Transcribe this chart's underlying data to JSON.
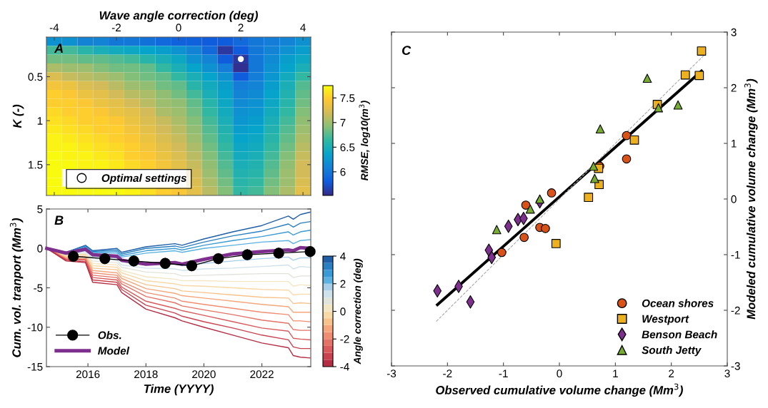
{
  "chart_data": [
    {
      "type": "heatmap",
      "xlabel": "Wave angle correction (deg)",
      "ylabel": "K (-)",
      "clabel": "RMSE, log10(m$^{3}$)",
      "annotations": [
        "A"
      ],
      "x": [
        -4,
        -3.5,
        -3,
        -2.5,
        -2,
        -1.5,
        -1,
        -0.5,
        0,
        0.5,
        1,
        1.5,
        2,
        2.5,
        3,
        3.5,
        4
      ],
      "y": [
        0.1,
        0.2,
        0.3,
        0.4,
        0.5,
        0.6,
        0.7,
        0.8,
        0.9,
        1.0,
        1.1,
        1.2,
        1.3,
        1.4,
        1.5,
        1.6,
        1.7,
        1.8
      ],
      "cells": [
        [
          6.2,
          6.2,
          6.1,
          6.1,
          6.0,
          6.0,
          5.95,
          5.9,
          5.85,
          5.85,
          5.8,
          5.8,
          5.9,
          6.0,
          6.05,
          6.1,
          6.2
        ],
        [
          6.7,
          6.7,
          6.6,
          6.5,
          6.45,
          6.4,
          6.35,
          6.3,
          6.2,
          6.1,
          5.9,
          5.6,
          5.8,
          6.0,
          6.1,
          6.2,
          6.3
        ],
        [
          6.85,
          6.85,
          6.8,
          6.8,
          6.75,
          6.7,
          6.6,
          6.5,
          6.4,
          6.2,
          6.1,
          5.8,
          5.6,
          6.0,
          6.15,
          6.3,
          6.4
        ],
        [
          7.05,
          7.0,
          7.0,
          6.9,
          6.85,
          6.85,
          6.8,
          6.65,
          6.5,
          6.35,
          6.2,
          6.05,
          5.55,
          6.0,
          6.2,
          6.35,
          6.5
        ],
        [
          7.25,
          7.15,
          7.1,
          7.05,
          7.0,
          6.9,
          6.85,
          6.8,
          6.65,
          6.5,
          6.35,
          6.2,
          5.8,
          6.05,
          6.25,
          6.45,
          6.65
        ],
        [
          7.4,
          7.35,
          7.25,
          7.2,
          7.1,
          7.0,
          6.95,
          6.85,
          6.8,
          6.6,
          6.45,
          6.3,
          6.05,
          6.1,
          6.3,
          6.5,
          6.75
        ],
        [
          7.5,
          7.45,
          7.35,
          7.3,
          7.2,
          7.1,
          7.05,
          6.95,
          6.85,
          6.7,
          6.5,
          6.35,
          6.1,
          6.15,
          6.35,
          6.55,
          6.8
        ],
        [
          7.5,
          7.5,
          7.45,
          7.35,
          7.3,
          7.2,
          7.1,
          7.0,
          6.95,
          6.8,
          6.6,
          6.4,
          6.15,
          6.2,
          6.4,
          6.6,
          6.85
        ],
        [
          7.55,
          7.5,
          7.5,
          7.45,
          7.35,
          7.3,
          7.2,
          7.05,
          7.0,
          6.85,
          6.65,
          6.45,
          6.2,
          6.25,
          6.45,
          6.65,
          6.9
        ],
        [
          7.6,
          7.55,
          7.5,
          7.5,
          7.45,
          7.35,
          7.25,
          7.15,
          7.05,
          6.9,
          6.7,
          6.5,
          6.25,
          6.3,
          6.5,
          6.7,
          6.95
        ],
        [
          7.65,
          7.6,
          7.55,
          7.5,
          7.5,
          7.4,
          7.3,
          7.2,
          7.1,
          6.95,
          6.75,
          6.55,
          6.3,
          6.35,
          6.55,
          6.75,
          7.0
        ],
        [
          7.7,
          7.65,
          7.6,
          7.55,
          7.5,
          7.45,
          7.35,
          7.25,
          7.15,
          7.0,
          6.8,
          6.6,
          6.35,
          6.4,
          6.6,
          6.8,
          7.05
        ],
        [
          7.7,
          7.7,
          7.65,
          7.6,
          7.55,
          7.5,
          7.4,
          7.3,
          7.2,
          7.05,
          6.85,
          6.65,
          6.4,
          6.45,
          6.65,
          6.85,
          7.1
        ],
        [
          7.75,
          7.7,
          7.7,
          7.65,
          7.6,
          7.5,
          7.45,
          7.35,
          7.25,
          7.1,
          6.9,
          6.7,
          6.45,
          6.5,
          6.7,
          6.9,
          7.15
        ],
        [
          7.75,
          7.75,
          7.7,
          7.7,
          7.65,
          7.55,
          7.5,
          7.4,
          7.3,
          7.15,
          6.95,
          6.75,
          6.5,
          6.55,
          6.75,
          6.95,
          7.2
        ],
        [
          7.75,
          null,
          null,
          null,
          null,
          null,
          null,
          null,
          null,
          7.2,
          7.0,
          6.8,
          6.55,
          6.6,
          6.8,
          7.0,
          7.2
        ],
        [
          7.75,
          null,
          null,
          null,
          null,
          null,
          null,
          null,
          null,
          7.25,
          7.05,
          6.85,
          6.6,
          6.65,
          6.85,
          7.0,
          7.25
        ],
        [
          7.75,
          7.75,
          7.75,
          7.75,
          7.75,
          7.7,
          7.6,
          7.5,
          7.45,
          7.3,
          7.1,
          6.9,
          6.65,
          6.7,
          6.9,
          7.05,
          7.3
        ]
      ],
      "clim": [
        5.52,
        7.75
      ],
      "cticks": [
        6,
        6.5,
        7,
        7.5
      ],
      "xlim": [
        -4.25,
        4.25
      ],
      "xticks": [
        -4,
        -2,
        0,
        2,
        4
      ],
      "ylim": [
        1.85,
        0.05
      ],
      "yticks": [
        0.5,
        1,
        1.5
      ],
      "series": [
        {
          "type": "scatter",
          "name": "Optimal settings",
          "color": "#ffffff",
          "marker": "circle",
          "x": [
            2
          ],
          "values": [
            0.3
          ]
        }
      ],
      "legend": "bottom left"
    },
    {
      "type": "line",
      "xlabel": "Time (YYYY)",
      "ylabel": "Cum. vol. tranport (Mm$^{3}$)",
      "clabel": "Angle correction (deg)",
      "annotations": [
        "B"
      ],
      "x": [
        "2014-08",
        "2015-04",
        "2015-12",
        "2016-03",
        "2017-01",
        "2017-03",
        "2018-01",
        "2019-01",
        "2019-04",
        "2020-01",
        "2021-01",
        "2022-01",
        "2022-12",
        "2023-02",
        "2023-05",
        "2023-09"
      ],
      "series": [
        {
          "color": "#1f5fa8",
          "values": [
            0,
            -0.5,
            0.4,
            -0.3,
            0.0,
            -0.5,
            0.2,
            0.6,
            0.4,
            1.2,
            2.1,
            2.9,
            4.1,
            3.7,
            4.3,
            4.6
          ]
        },
        {
          "color": "#2a7fc0",
          "values": [
            0,
            -0.5,
            0.3,
            -0.4,
            -0.2,
            -0.7,
            0.0,
            0.3,
            0.1,
            0.8,
            1.6,
            2.2,
            3.1,
            2.7,
            3.2,
            3.4
          ]
        },
        {
          "color": "#3a9ad5",
          "values": [
            0,
            -0.6,
            0.2,
            -0.5,
            -0.4,
            -0.9,
            -0.3,
            0.0,
            -0.2,
            0.4,
            1.0,
            1.5,
            2.1,
            1.7,
            2.1,
            2.3
          ]
        },
        {
          "color": "#5cb1e0",
          "values": [
            0,
            -0.6,
            0.1,
            -0.6,
            -0.6,
            -1.1,
            -0.6,
            -0.3,
            -0.5,
            0.0,
            0.4,
            0.8,
            1.0,
            0.6,
            1.0,
            1.1
          ]
        },
        {
          "color": "#a9cfe8",
          "values": [
            0,
            -0.7,
            -0.3,
            -1.0,
            -1.2,
            -1.7,
            -2.0,
            -2.0,
            -2.2,
            -1.9,
            -1.6,
            -1.3,
            -1.1,
            -1.5,
            -1.2,
            -1.2
          ]
        },
        {
          "color": "#cfe1ea",
          "values": [
            0,
            -0.8,
            -0.4,
            -1.3,
            -1.5,
            -2.1,
            -2.5,
            -2.6,
            -2.8,
            -2.6,
            -2.5,
            -2.3,
            -2.1,
            -2.6,
            -2.3,
            -2.4
          ]
        },
        {
          "color": "#e2e4dc",
          "values": [
            0,
            -0.9,
            -0.6,
            -1.6,
            -1.8,
            -2.4,
            -3.0,
            -3.2,
            -3.5,
            -3.4,
            -3.3,
            -3.2,
            -3.2,
            -3.7,
            -3.5,
            -3.5
          ]
        },
        {
          "color": "#f3e6c4",
          "values": [
            0,
            -0.9,
            -0.7,
            -1.9,
            -2.1,
            -2.8,
            -3.6,
            -3.9,
            -4.1,
            -4.1,
            -4.2,
            -4.2,
            -4.2,
            -4.8,
            -4.6,
            -4.7
          ]
        },
        {
          "color": "#f8d9a8",
          "values": [
            0,
            -1.0,
            -0.8,
            -2.2,
            -2.4,
            -3.1,
            -4.1,
            -4.5,
            -4.7,
            -4.8,
            -5.0,
            -5.2,
            -5.3,
            -5.9,
            -5.8,
            -5.8
          ]
        },
        {
          "color": "#f7c38d",
          "values": [
            0,
            -1.1,
            -1.0,
            -2.5,
            -2.7,
            -3.5,
            -4.6,
            -5.1,
            -5.4,
            -5.6,
            -5.9,
            -6.2,
            -6.3,
            -7.0,
            -6.9,
            -7.0
          ]
        },
        {
          "color": "#f4a77d",
          "values": [
            0,
            -1.2,
            -1.1,
            -2.8,
            -3.1,
            -3.8,
            -5.1,
            -5.7,
            -6.0,
            -6.3,
            -6.7,
            -7.1,
            -7.4,
            -8.1,
            -8.1,
            -8.1
          ]
        },
        {
          "color": "#ee8d72",
          "values": [
            0,
            -1.3,
            -1.3,
            -3.1,
            -3.4,
            -4.2,
            -5.6,
            -6.3,
            -6.7,
            -7.1,
            -7.6,
            -8.1,
            -8.4,
            -9.2,
            -9.2,
            -9.3
          ]
        },
        {
          "color": "#e47367",
          "values": [
            0,
            -1.4,
            -1.4,
            -3.4,
            -3.7,
            -4.5,
            -6.1,
            -6.9,
            -7.3,
            -7.8,
            -8.4,
            -9.1,
            -9.5,
            -10.3,
            -10.4,
            -10.4
          ]
        },
        {
          "color": "#d85a5c",
          "values": [
            0,
            -1.4,
            -1.5,
            -3.7,
            -4.0,
            -4.9,
            -6.7,
            -7.6,
            -7.9,
            -8.5,
            -9.3,
            -10.1,
            -10.5,
            -11.4,
            -11.5,
            -11.6
          ]
        },
        {
          "color": "#c94250",
          "values": [
            0,
            -1.5,
            -1.7,
            -4.0,
            -4.3,
            -5.2,
            -7.2,
            -8.2,
            -8.6,
            -9.3,
            -10.1,
            -11.0,
            -11.6,
            -12.5,
            -12.7,
            -12.7
          ]
        },
        {
          "color": "#b52d44",
          "values": [
            0,
            -1.6,
            -1.8,
            -4.3,
            -4.6,
            -5.6,
            -7.7,
            -8.8,
            -9.2,
            -10.0,
            -11.0,
            -12.0,
            -12.6,
            -13.6,
            -13.8,
            -13.9
          ]
        },
        {
          "name": "Obs.",
          "color": "#000000",
          "marker": "circle",
          "x": [
            "2015-07",
            "2016-08",
            "2017-08",
            "2018-09",
            "2019-08",
            "2020-07",
            "2021-07",
            "2022-08",
            "2023-09"
          ],
          "values": [
            -1.0,
            -1.3,
            -1.6,
            -1.9,
            -2.2,
            -1.3,
            -0.8,
            -0.6,
            -0.4
          ],
          "errors": [
            0.7,
            0.7,
            0.7,
            0.7,
            0.7,
            0.7,
            0.7,
            0.7,
            0.7
          ]
        },
        {
          "name": "Model",
          "color": "#7e2f8e",
          "values": [
            0,
            -0.6,
            -0.1,
            -0.8,
            -1.0,
            -1.5,
            -2.0,
            -1.8,
            -2.0,
            -1.4,
            -0.7,
            -0.4,
            -0.2,
            -0.3,
            0.1,
            0.0
          ]
        }
      ],
      "clim": [
        -4,
        4
      ],
      "cticks": [
        -4,
        -2,
        0,
        2,
        4
      ],
      "xlim": [
        "2014-07-27",
        "2023-09-09"
      ],
      "xticks": [
        "2016",
        "2018",
        "2020",
        "2022"
      ],
      "ylim": [
        -15,
        5
      ],
      "yticks": [
        -15,
        -10,
        -5,
        0,
        5
      ],
      "legend": "bottom left"
    },
    {
      "type": "scatter",
      "xlabel": "Observed cumulative volume change (Mm$^{3}$)",
      "ylabel": "Modeled cumulative volume change (Mm$^{3}$)",
      "annotations": [
        "C"
      ],
      "series": [
        {
          "name": "Ocean shores",
          "color": "#d95319",
          "marker": "circle",
          "x": [
            -1.03,
            -0.63,
            -0.6,
            -0.35,
            -0.25,
            -0.14,
            0.72,
            1.2,
            1.2
          ],
          "values": [
            -0.96,
            -0.69,
            -0.11,
            -0.51,
            -0.53,
            0.11,
            0.59,
            1.14,
            0.72
          ]
        },
        {
          "name": "Westport",
          "color": "#edb120",
          "marker": "square",
          "x": [
            -0.06,
            0.52,
            0.71,
            0.7,
            1.34,
            1.75,
            2.25,
            2.5,
            2.54
          ],
          "values": [
            -0.8,
            0.03,
            0.26,
            0.55,
            1.06,
            1.7,
            2.23,
            2.22,
            2.66
          ]
        },
        {
          "name": "Benson Beach",
          "color": "#7e2f8e",
          "marker": "diamond",
          "x": [
            -2.18,
            -1.8,
            -1.59,
            -1.26,
            -1.21,
            -0.91,
            -0.74,
            -0.64,
            -0.35
          ],
          "values": [
            -1.65,
            -1.57,
            -1.85,
            -0.92,
            -1.05,
            -0.49,
            -0.37,
            -0.35,
            -0.05
          ]
        },
        {
          "name": "South Jetty",
          "color": "#77ac30",
          "marker": "triangle",
          "x": [
            -1.12,
            -0.52,
            -0.35,
            0.61,
            0.63,
            0.73,
            1.57,
            1.77,
            2.12
          ],
          "values": [
            -0.55,
            -0.18,
            0.0,
            0.59,
            0.37,
            1.26,
            2.17,
            1.64,
            1.69
          ]
        },
        {
          "type": "line",
          "color": "#000000",
          "x": [
            -2.18,
            2.54
          ],
          "values": [
            -1.9,
            2.3
          ]
        },
        {
          "type": "line",
          "color": "#aaaaaa",
          "line_style": "dashed",
          "x": [
            -2.2,
            2.6
          ],
          "values": [
            -2.2,
            2.6
          ]
        }
      ],
      "xlim": [
        -3,
        3
      ],
      "xticks": [
        -3,
        -2,
        -1,
        0,
        1,
        2,
        3
      ],
      "ylim": [
        -3,
        3
      ],
      "yticks": [
        -3,
        -2,
        -1,
        0,
        1,
        2,
        3
      ],
      "legend": "bottom right"
    }
  ]
}
